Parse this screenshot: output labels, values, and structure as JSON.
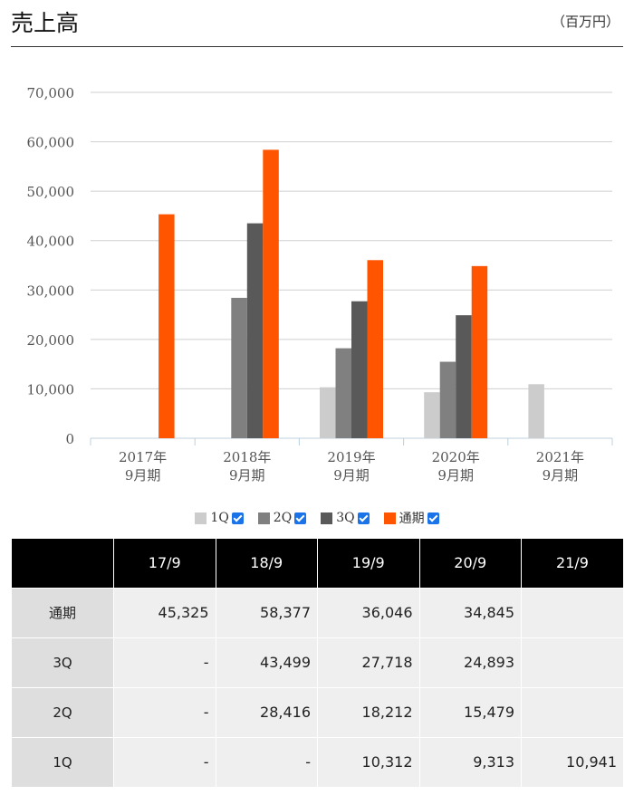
{
  "header": {
    "title": "売上高",
    "unit": "（百万円）"
  },
  "chart_data": {
    "type": "bar",
    "categories": [
      [
        "2017年",
        "9月期"
      ],
      [
        "2018年",
        "9月期"
      ],
      [
        "2019年",
        "9月期"
      ],
      [
        "2020年",
        "9月期"
      ],
      [
        "2021年",
        "9月期"
      ]
    ],
    "ylim": [
      0,
      70000
    ],
    "yticks": [
      0,
      10000,
      20000,
      30000,
      40000,
      50000,
      60000,
      70000
    ],
    "ytick_labels": [
      "0",
      "10,000",
      "20,000",
      "30,000",
      "40,000",
      "50,000",
      "60,000",
      "70,000"
    ],
    "grid": true,
    "legend_position": "bottom",
    "series": [
      {
        "name": "1Q",
        "color": "#cccccc",
        "values": [
          null,
          null,
          10312,
          9313,
          10941
        ]
      },
      {
        "name": "2Q",
        "color": "#808080",
        "values": [
          null,
          28416,
          18212,
          15479,
          null
        ]
      },
      {
        "name": "3Q",
        "color": "#595959",
        "values": [
          null,
          43499,
          27718,
          24893,
          null
        ]
      },
      {
        "name": "通期",
        "color": "#ff5500",
        "values": [
          45325,
          58377,
          36046,
          34845,
          null
        ]
      }
    ]
  },
  "table": {
    "columns": [
      "",
      "17/9",
      "18/9",
      "19/9",
      "20/9",
      "21/9"
    ],
    "rows": [
      {
        "label": "通期",
        "cells": [
          "45,325",
          "58,377",
          "36,046",
          "34,845",
          ""
        ]
      },
      {
        "label": "3Q",
        "cells": [
          "-",
          "43,499",
          "27,718",
          "24,893",
          ""
        ]
      },
      {
        "label": "2Q",
        "cells": [
          "-",
          "28,416",
          "18,212",
          "15,479",
          ""
        ]
      },
      {
        "label": "1Q",
        "cells": [
          "-",
          "-",
          "10,312",
          "9,313",
          "10,941"
        ]
      }
    ]
  }
}
